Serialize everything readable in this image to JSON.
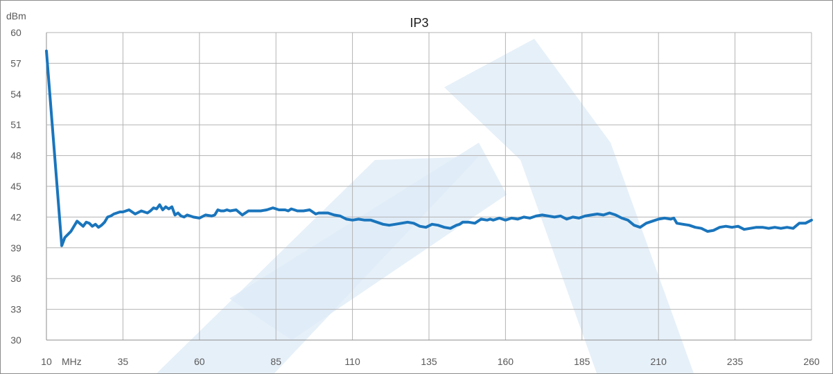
{
  "chart_data": {
    "type": "line",
    "title": "IP3",
    "ylabel": "dBm",
    "xunit": "MHz",
    "xlim": [
      10,
      260
    ],
    "ylim": [
      30,
      60
    ],
    "x_ticks": [
      10,
      35,
      60,
      85,
      110,
      135,
      160,
      185,
      210,
      235,
      260
    ],
    "y_ticks": [
      30,
      33,
      36,
      39,
      42,
      45,
      48,
      51,
      54,
      57,
      60
    ],
    "grid": true,
    "line_color": "#1a75bc",
    "watermark_color": "#ddebf7",
    "series": [
      {
        "x": [
          10,
          15,
          16,
          18,
          20,
          22,
          23,
          24,
          25,
          26,
          27,
          28,
          29,
          30,
          31,
          32,
          33,
          34,
          35,
          37,
          39,
          41,
          42,
          43,
          44,
          45,
          46,
          47,
          48,
          49,
          50,
          51,
          52,
          53,
          54,
          55,
          56,
          57,
          58,
          60,
          62,
          64,
          65,
          66,
          67,
          68,
          69,
          70,
          72,
          74,
          76,
          77,
          78,
          80,
          82,
          84,
          86,
          88,
          89,
          90,
          91,
          92,
          94,
          96,
          98,
          99,
          100,
          102,
          104,
          106,
          108,
          110,
          112,
          114,
          116,
          118,
          120,
          122,
          124,
          126,
          128,
          130,
          132,
          134,
          136,
          138,
          140,
          142,
          144,
          145,
          146,
          148,
          150,
          152,
          154,
          155,
          156,
          158,
          159,
          160,
          162,
          164,
          166,
          168,
          170,
          172,
          174,
          176,
          178,
          180,
          182,
          184,
          186,
          188,
          190,
          192,
          194,
          196,
          198,
          200,
          202,
          204,
          206,
          208,
          210,
          212,
          214,
          215,
          216,
          218,
          220,
          222,
          224,
          226,
          228,
          230,
          232,
          234,
          236,
          238,
          240,
          242,
          244,
          246,
          248,
          250,
          252,
          254,
          256,
          258,
          260
        ],
        "y": [
          58.2,
          39.2,
          40.0,
          40.6,
          41.6,
          41.1,
          41.5,
          41.4,
          41.1,
          41.3,
          41.0,
          41.2,
          41.5,
          42.0,
          42.1,
          42.3,
          42.4,
          42.5,
          42.5,
          42.7,
          42.3,
          42.6,
          42.5,
          42.4,
          42.6,
          42.9,
          42.8,
          43.2,
          42.7,
          43.0,
          42.8,
          43.0,
          42.2,
          42.4,
          42.1,
          42.0,
          42.2,
          42.1,
          42.0,
          41.9,
          42.2,
          42.1,
          42.2,
          42.7,
          42.6,
          42.6,
          42.7,
          42.6,
          42.7,
          42.2,
          42.6,
          42.6,
          42.6,
          42.6,
          42.7,
          42.9,
          42.7,
          42.7,
          42.6,
          42.8,
          42.7,
          42.6,
          42.6,
          42.7,
          42.3,
          42.4,
          42.4,
          42.4,
          42.2,
          42.1,
          41.8,
          41.7,
          41.8,
          41.7,
          41.7,
          41.5,
          41.3,
          41.2,
          41.3,
          41.4,
          41.5,
          41.4,
          41.1,
          41.0,
          41.3,
          41.2,
          41.0,
          40.9,
          41.2,
          41.3,
          41.5,
          41.5,
          41.4,
          41.8,
          41.7,
          41.8,
          41.7,
          41.9,
          41.8,
          41.7,
          41.9,
          41.8,
          42.0,
          41.9,
          42.1,
          42.2,
          42.1,
          42.0,
          42.1,
          41.8,
          42.0,
          41.9,
          42.1,
          42.2,
          42.3,
          42.2,
          42.4,
          42.2,
          41.9,
          41.7,
          41.2,
          41.0,
          41.4,
          41.6,
          41.8,
          41.9,
          41.8,
          41.9,
          41.4,
          41.3,
          41.2,
          41.0,
          40.9,
          40.6,
          40.7,
          41.0,
          41.1,
          41.0,
          41.1,
          40.8,
          40.9,
          41.0,
          41.0,
          40.9,
          41.0,
          40.9,
          41.0,
          40.9,
          41.4,
          41.4,
          41.7
        ]
      }
    ]
  }
}
